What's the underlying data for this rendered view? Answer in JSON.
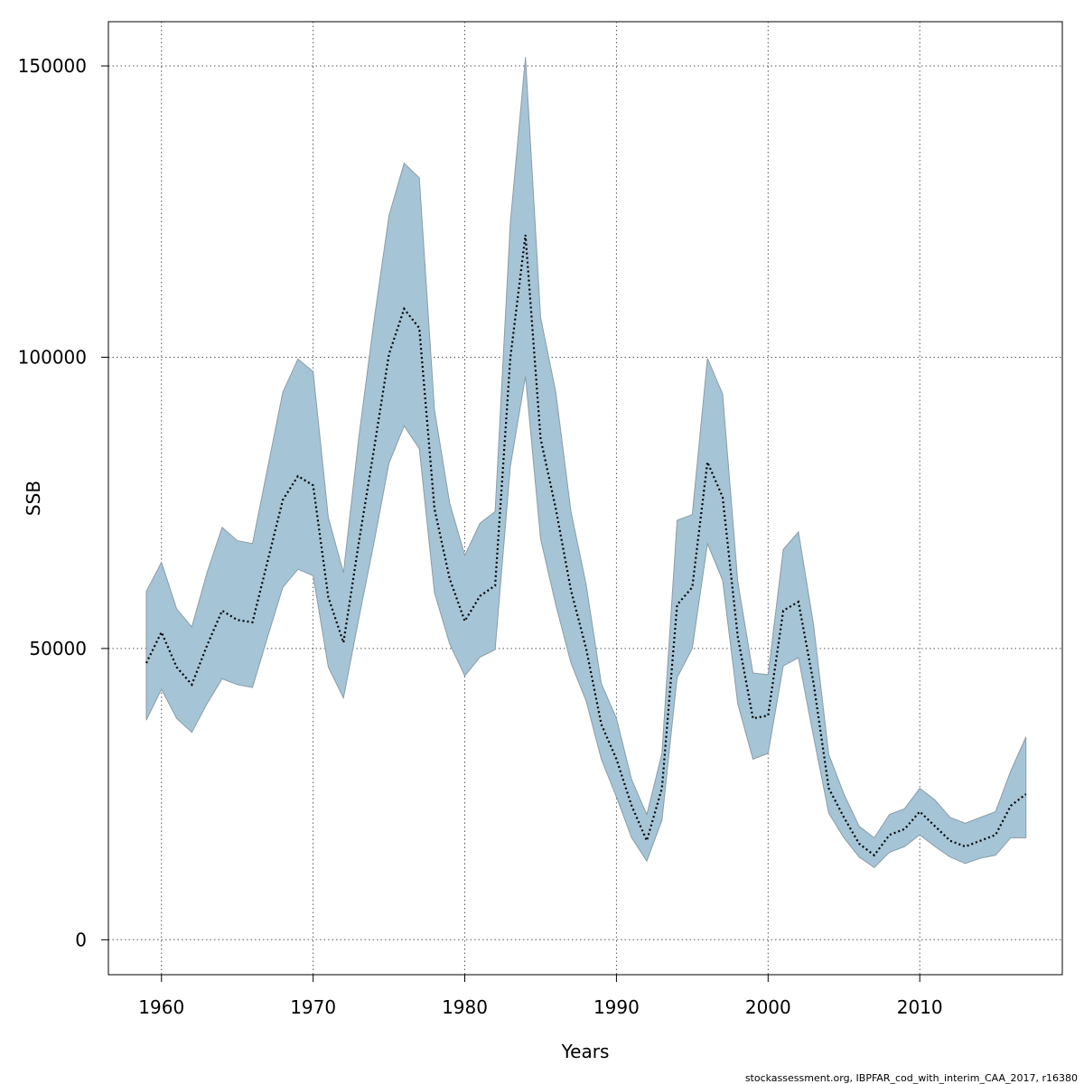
{
  "chart_data": {
    "type": "line",
    "xlabel": "Years",
    "ylabel": "SSB",
    "xlim": [
      1956.5,
      2019.4
    ],
    "ylim": [
      -6000,
      157600
    ],
    "x_ticks": [
      1960,
      1970,
      1980,
      1990,
      2000,
      2010
    ],
    "y_ticks": [
      0,
      50000,
      100000,
      150000
    ],
    "x_tick_labels": [
      "1960",
      "1970",
      "1980",
      "1990",
      "2000",
      "2010"
    ],
    "y_tick_labels": [
      "0",
      "50000",
      "100000",
      "150000"
    ],
    "grid": true,
    "x": [
      1959,
      1960,
      1961,
      1962,
      1963,
      1964,
      1965,
      1966,
      1967,
      1968,
      1969,
      1970,
      1971,
      1972,
      1973,
      1974,
      1975,
      1976,
      1977,
      1978,
      1979,
      1980,
      1981,
      1982,
      1983,
      1984,
      1985,
      1986,
      1987,
      1988,
      1989,
      1990,
      1991,
      1992,
      1993,
      1994,
      1995,
      1996,
      1997,
      1998,
      1999,
      2000,
      2001,
      2002,
      2003,
      2004,
      2005,
      2006,
      2007,
      2008,
      2009,
      2010,
      2011,
      2012,
      2013,
      2014,
      2015,
      2016,
      2017
    ],
    "series": [
      {
        "style": "dotted",
        "values": [
          47500,
          52800,
          46800,
          43800,
          50500,
          56500,
          54900,
          54500,
          65000,
          75500,
          79600,
          78000,
          58800,
          51000,
          68000,
          84000,
          100500,
          108300,
          105000,
          74000,
          62000,
          54700,
          59000,
          60800,
          99800,
          121000,
          86000,
          74000,
          60000,
          50000,
          37000,
          31000,
          23000,
          17000,
          26000,
          57500,
          60500,
          82000,
          76000,
          52000,
          38000,
          38500,
          56500,
          58000,
          44000,
          26000,
          21000,
          16500,
          14500,
          18000,
          19000,
          22000,
          19500,
          17000,
          16000,
          17000,
          18000,
          23000,
          25000
        ]
      }
    ],
    "band": {
      "upper": [
        59800,
        64800,
        56800,
        53700,
        63000,
        70800,
        68500,
        68000,
        81000,
        94000,
        99700,
        97500,
        72500,
        63000,
        86000,
        106000,
        124300,
        133300,
        130800,
        91000,
        75000,
        66000,
        71500,
        73500,
        123000,
        151500,
        106800,
        94000,
        73500,
        61000,
        44000,
        38000,
        27500,
        21500,
        32000,
        72000,
        73000,
        99800,
        93700,
        61500,
        45800,
        45500,
        67000,
        70000,
        54000,
        31800,
        25000,
        19500,
        17500,
        21500,
        22500,
        26000,
        24000,
        21000,
        20000,
        21000,
        22000,
        29000,
        34800
      ],
      "lower": [
        37700,
        43000,
        38000,
        35600,
        40500,
        44800,
        43800,
        43300,
        52000,
        60500,
        63600,
        62500,
        46800,
        41500,
        55000,
        68000,
        81800,
        88200,
        84300,
        59600,
        50800,
        45300,
        48500,
        49800,
        81200,
        96700,
        68800,
        57500,
        47500,
        41000,
        31000,
        24500,
        17500,
        13500,
        20500,
        45000,
        50000,
        68000,
        61700,
        40500,
        31000,
        32000,
        47000,
        48400,
        34800,
        21700,
        17500,
        14200,
        12400,
        15000,
        16000,
        18000,
        16000,
        14200,
        13100,
        14000,
        14500,
        17500,
        17500
      ]
    }
  },
  "footer": "stockassessment.org, IBPFAR_cod_with_interim_CAA_2017, r16380",
  "colors": {
    "band_fill": "#a5c4d6",
    "band_stroke": "#8a9da8",
    "line": "#000000",
    "grid": "#555555",
    "frame": "#000000"
  }
}
